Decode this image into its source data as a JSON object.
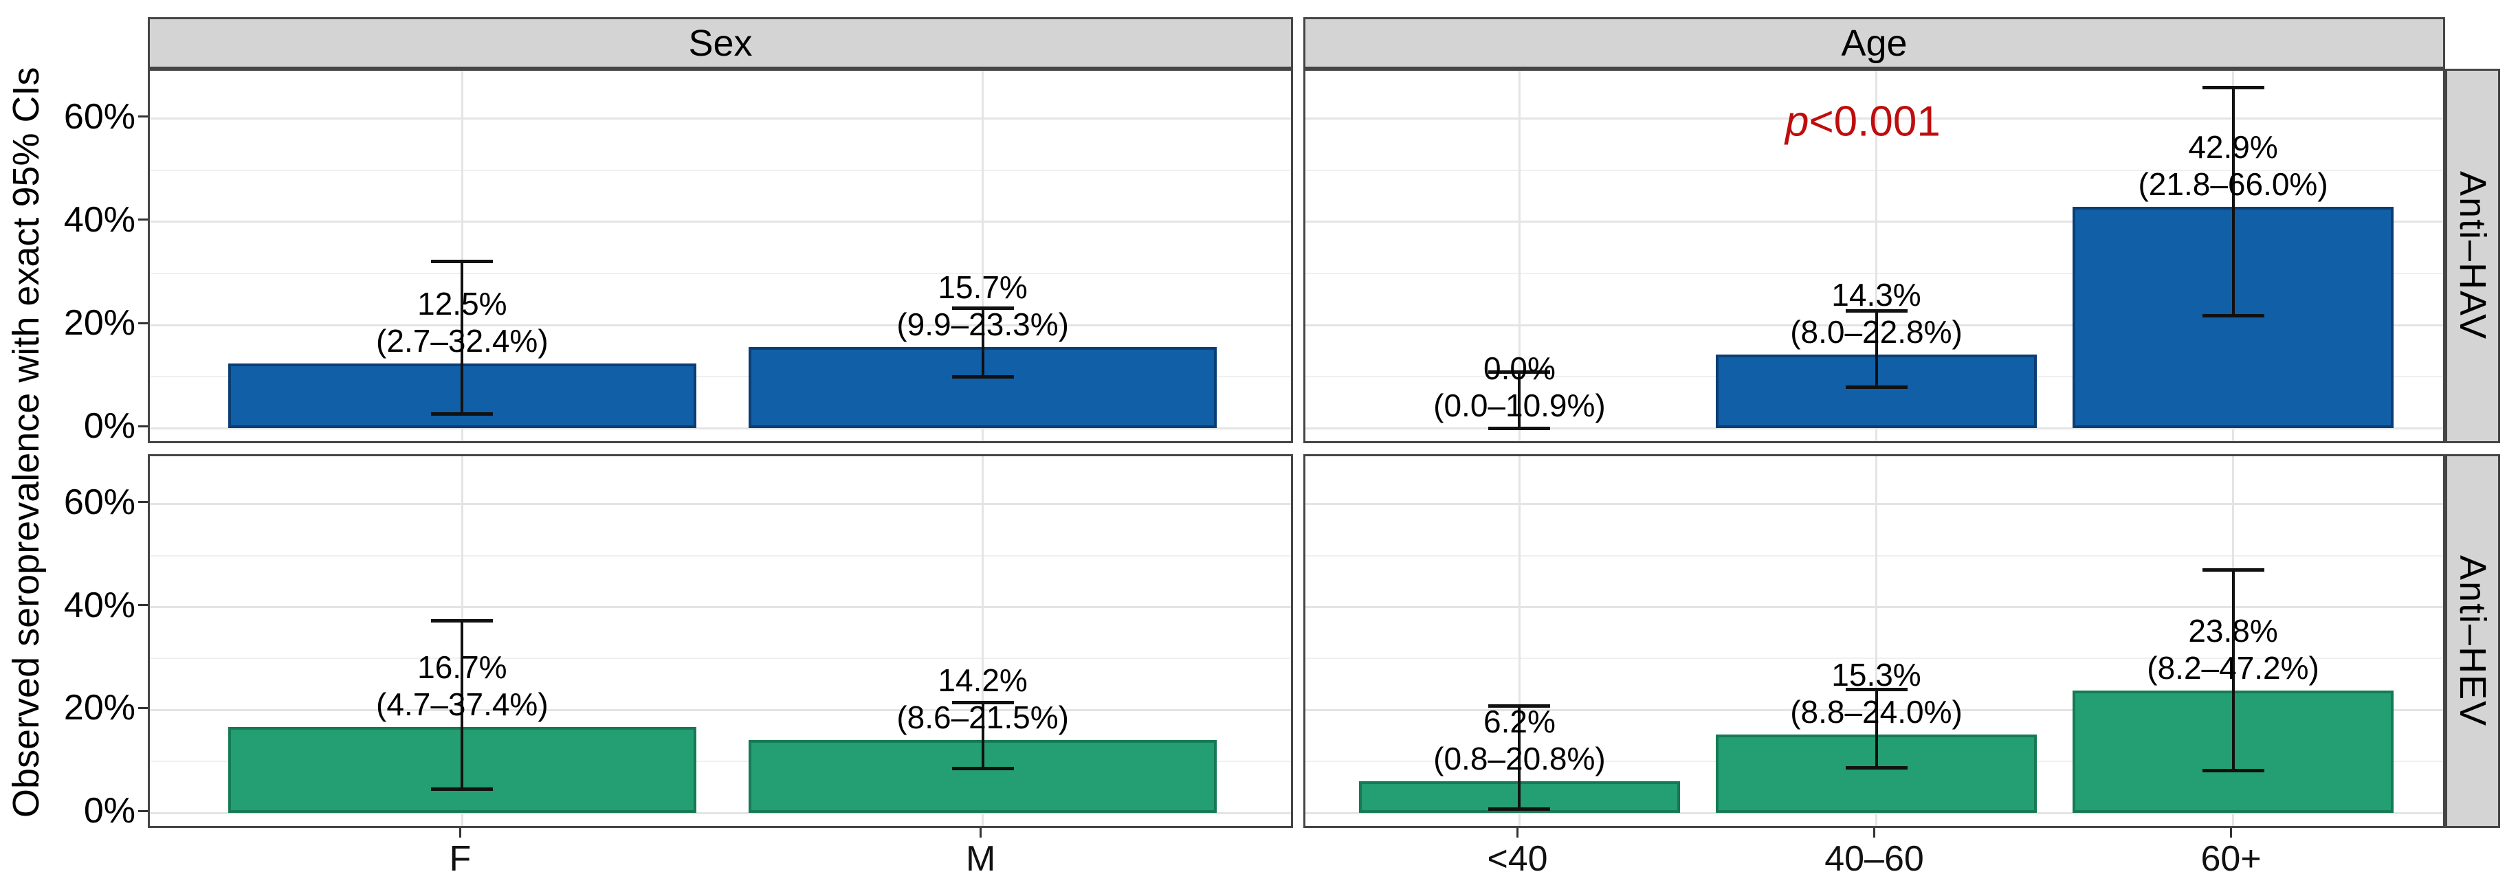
{
  "chart_data": {
    "type": "bar",
    "title": "",
    "ylabel": "Observed seroprevalence with exact 95% CIs",
    "y_axis": {
      "tick_values": [
        0,
        20,
        40,
        60
      ],
      "tick_labels": [
        "0%",
        "20%",
        "40%",
        "60%"
      ],
      "minor_tick_values": [
        10,
        30,
        50
      ],
      "ylim": [
        -3.3,
        69.3
      ],
      "grid": true
    },
    "col_facets": [
      {
        "label": "Sex",
        "categories": [
          "F",
          "M"
        ]
      },
      {
        "label": "Age",
        "categories": [
          "<40",
          "40–60",
          "60+"
        ]
      }
    ],
    "row_facets": [
      {
        "label": "Anti–HAV",
        "bar_color": "#115FA6",
        "bar_border": "#0A3E75"
      },
      {
        "label": "Anti–HEV",
        "bar_color": "#249E73",
        "bar_border": "#157A55"
      }
    ],
    "annotation": {
      "italic_text": "p",
      "rest_text": "<0.001",
      "color": "#BE0D0D",
      "row": 0,
      "col": 1
    },
    "error_bar_color": "#111111",
    "panels": [
      {
        "row": 0,
        "col": 0,
        "bars": [
          {
            "category": "F",
            "value": 12.5,
            "ci_low": 2.7,
            "ci_high": 32.4,
            "label": "12.5%",
            "ci_label": "(2.7–32.4%)"
          },
          {
            "category": "M",
            "value": 15.7,
            "ci_low": 9.9,
            "ci_high": 23.3,
            "label": "15.7%",
            "ci_label": "(9.9–23.3%)"
          }
        ]
      },
      {
        "row": 0,
        "col": 1,
        "bars": [
          {
            "category": "<40",
            "value": 0.0,
            "ci_low": 0.0,
            "ci_high": 10.9,
            "label": "0.0%",
            "ci_label": "(0.0–10.9%)"
          },
          {
            "category": "40–60",
            "value": 14.3,
            "ci_low": 8.0,
            "ci_high": 22.8,
            "label": "14.3%",
            "ci_label": "(8.0–22.8%)"
          },
          {
            "category": "60+",
            "value": 42.9,
            "ci_low": 21.8,
            "ci_high": 66.0,
            "label": "42.9%",
            "ci_label": "(21.8–66.0%)"
          }
        ]
      },
      {
        "row": 1,
        "col": 0,
        "bars": [
          {
            "category": "F",
            "value": 16.7,
            "ci_low": 4.7,
            "ci_high": 37.4,
            "label": "16.7%",
            "ci_label": "(4.7–37.4%)"
          },
          {
            "category": "M",
            "value": 14.2,
            "ci_low": 8.6,
            "ci_high": 21.5,
            "label": "14.2%",
            "ci_label": "(8.6–21.5%)"
          }
        ]
      },
      {
        "row": 1,
        "col": 1,
        "bars": [
          {
            "category": "<40",
            "value": 6.2,
            "ci_low": 0.8,
            "ci_high": 20.8,
            "label": "6.2%",
            "ci_label": "(0.8–20.8%)"
          },
          {
            "category": "40–60",
            "value": 15.3,
            "ci_low": 8.8,
            "ci_high": 24.0,
            "label": "15.3%",
            "ci_label": "(8.8–24.0%)"
          },
          {
            "category": "60+",
            "value": 23.8,
            "ci_low": 8.2,
            "ci_high": 47.2,
            "label": "23.8%",
            "ci_label": "(8.2–47.2%)"
          }
        ]
      }
    ]
  }
}
